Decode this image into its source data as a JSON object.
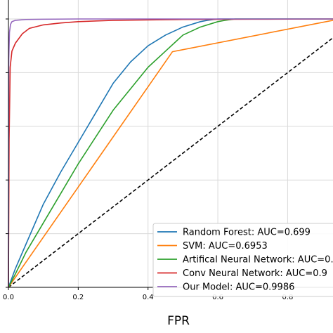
{
  "chart_data": {
    "type": "line",
    "title": "",
    "xlabel": "FPR",
    "ylabel": "",
    "xlim": [
      0.0,
      0.93
    ],
    "ylim": [
      0.0,
      1.0
    ],
    "x_ticks": [
      0.0,
      0.2,
      0.4,
      0.6,
      0.8
    ],
    "x_tick_labels": [
      "0.0",
      "0.2",
      "0.4",
      "0.6",
      "0.8"
    ],
    "grid": true,
    "legend_position": "lower right",
    "series": [
      {
        "name": "Random Forest: AUC=0.699",
        "color": "#1f77b4",
        "x": [
          0,
          0.02,
          0.05,
          0.1,
          0.15,
          0.2,
          0.25,
          0.3,
          0.35,
          0.4,
          0.45,
          0.5,
          0.55,
          0.57,
          0.6,
          0.65,
          0.7,
          0.8,
          0.93
        ],
        "y": [
          0,
          0.07,
          0.16,
          0.31,
          0.43,
          0.54,
          0.65,
          0.76,
          0.84,
          0.9,
          0.94,
          0.97,
          0.99,
          0.995,
          1.0,
          1.0,
          1.0,
          1.0,
          1.0
        ]
      },
      {
        "name": "SVM: AUC=0.6953",
        "color": "#ff7f0e",
        "x": [
          0,
          0.47,
          0.93
        ],
        "y": [
          0,
          0.878,
          0.995
        ]
      },
      {
        "name": "Artifical Neural Network: AUC=0.",
        "color": "#2ca02c",
        "x": [
          0,
          0.02,
          0.05,
          0.1,
          0.15,
          0.2,
          0.25,
          0.3,
          0.35,
          0.4,
          0.45,
          0.5,
          0.55,
          0.6,
          0.62,
          0.65,
          0.7,
          0.8,
          0.93
        ],
        "y": [
          0,
          0.05,
          0.13,
          0.24,
          0.35,
          0.46,
          0.56,
          0.66,
          0.74,
          0.82,
          0.88,
          0.94,
          0.97,
          0.99,
          0.995,
          1.0,
          1.0,
          1.0,
          1.0
        ]
      },
      {
        "name": "Conv Neural Network: AUC=0.9",
        "color": "#d62728",
        "x": [
          0,
          0.002,
          0.005,
          0.01,
          0.02,
          0.04,
          0.06,
          0.1,
          0.15,
          0.2,
          0.3,
          0.5,
          0.7,
          0.93
        ],
        "y": [
          0,
          0.55,
          0.82,
          0.88,
          0.91,
          0.945,
          0.965,
          0.978,
          0.985,
          0.99,
          0.995,
          0.998,
          0.999,
          1.0
        ]
      },
      {
        "name": "Our Model: AUC=0.9986",
        "color": "#9467bd",
        "x": [
          0,
          0.001,
          0.003,
          0.006,
          0.01,
          0.02,
          0.05,
          0.1,
          0.2,
          0.5,
          0.93
        ],
        "y": [
          0,
          0.85,
          0.95,
          0.98,
          0.99,
          0.995,
          0.998,
          0.999,
          1.0,
          1.0,
          1.0
        ]
      }
    ],
    "reference_line": {
      "style": "dashed",
      "color": "#000000",
      "x": [
        0,
        0.93
      ],
      "y": [
        0,
        0.93
      ]
    }
  }
}
